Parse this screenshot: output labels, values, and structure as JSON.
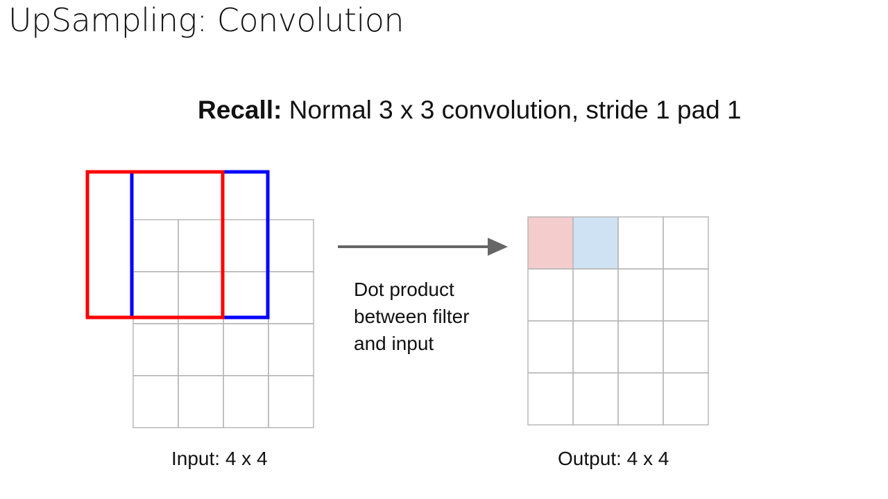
{
  "slide": {
    "title": "UpSampling: Convolution"
  },
  "subtitle": {
    "bold": "Recall:",
    "rest": " Normal 3 x 3 convolution, stride 1 pad 1"
  },
  "input_grid": {
    "label": "Input: 4 x 4",
    "rows": 4,
    "cols": 4
  },
  "output_grid": {
    "label": "Output: 4 x 4",
    "rows": 4,
    "cols": 4,
    "highlights": [
      {
        "row": 0,
        "col": 0,
        "color": "#f4cccc"
      },
      {
        "row": 0,
        "col": 1,
        "color": "#cfe2f3"
      }
    ]
  },
  "filters": [
    {
      "name": "red-filter",
      "color": "#ff0000",
      "size": "3 x 3"
    },
    {
      "name": "blue-filter",
      "color": "#0000ff",
      "size": "3 x 3"
    }
  ],
  "arrow": {
    "color": "#666666",
    "label_lines": [
      "Dot product",
      "between filter",
      "and input"
    ]
  },
  "colors": {
    "grid_line": "#b7b7b7",
    "text": "#111111"
  }
}
